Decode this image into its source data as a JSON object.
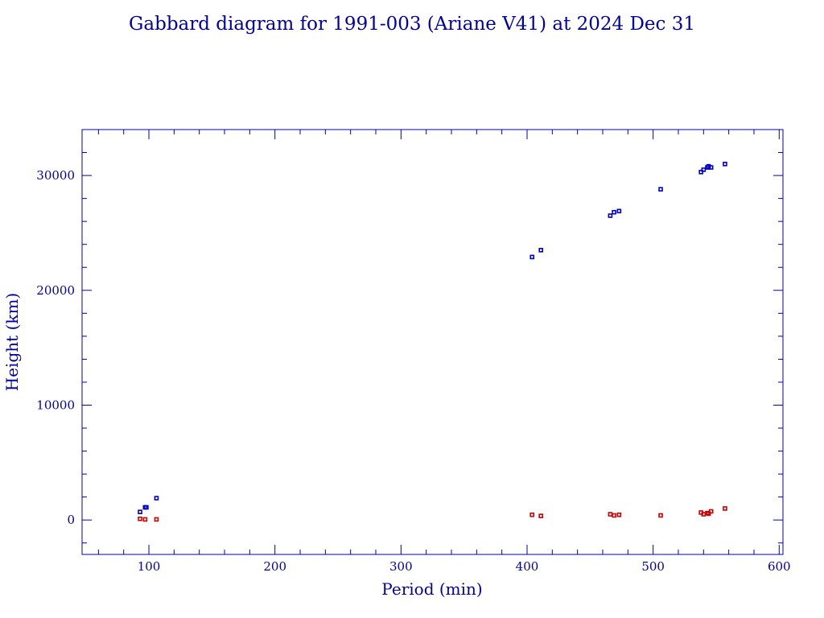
{
  "chart_data": {
    "type": "scatter",
    "title": "Gabbard diagram for 1991-003 (Ariane V41) at 2024 Dec 31",
    "xlabel": "Period (min)",
    "ylabel": "Height (km)",
    "xlim": [
      47,
      603
    ],
    "ylim": [
      -3000,
      34000
    ],
    "x_ticks": [
      100,
      200,
      300,
      400,
      500,
      600
    ],
    "y_ticks": [
      0,
      10000,
      20000,
      30000
    ],
    "x_tick_labels": [
      "100",
      "200",
      "300",
      "400",
      "500",
      "600"
    ],
    "y_tick_labels": [
      "0",
      "10000",
      "20000",
      "30000"
    ],
    "grid": false,
    "legend": "none",
    "series": [
      {
        "color": "#0000cc",
        "points": [
          [
            93,
            700
          ],
          [
            97,
            1100
          ],
          [
            98,
            1100
          ],
          [
            106,
            1900
          ],
          [
            404,
            22900
          ],
          [
            411,
            23500
          ],
          [
            466,
            26500
          ],
          [
            469,
            26800
          ],
          [
            473,
            26900
          ],
          [
            506,
            28800
          ],
          [
            538,
            30300
          ],
          [
            540,
            30500
          ],
          [
            543,
            30700
          ],
          [
            544,
            30800
          ],
          [
            546,
            30700
          ],
          [
            557,
            31000
          ]
        ]
      },
      {
        "color": "#cc0000",
        "points": [
          [
            93,
            100
          ],
          [
            97,
            50
          ],
          [
            106,
            50
          ],
          [
            404,
            450
          ],
          [
            411,
            350
          ],
          [
            466,
            500
          ],
          [
            469,
            400
          ],
          [
            473,
            450
          ],
          [
            506,
            400
          ],
          [
            538,
            650
          ],
          [
            540,
            500
          ],
          [
            543,
            600
          ],
          [
            544,
            550
          ],
          [
            546,
            750
          ],
          [
            557,
            1000
          ]
        ]
      }
    ]
  }
}
